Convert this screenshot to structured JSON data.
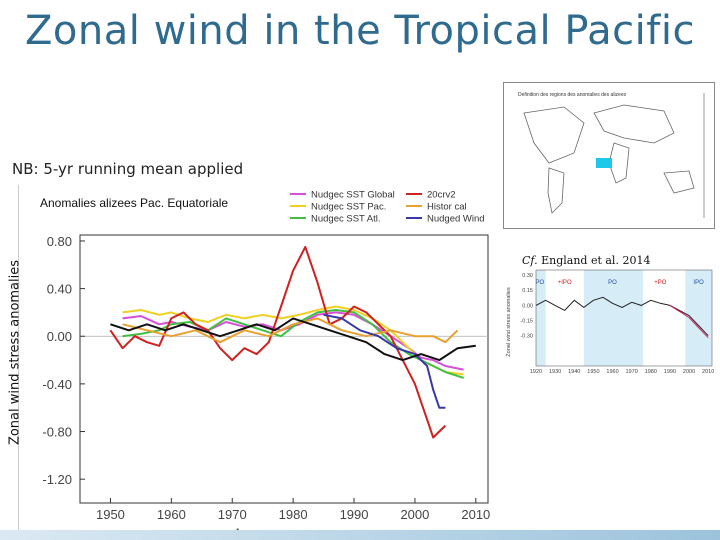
{
  "slide": {
    "title": "Zonal wind in the Tropical Pacific",
    "note": "NB: 5-yr running mean applied",
    "outer_ylabel": "Zonal wind stress anomalies",
    "cf_prefix": "Cf.",
    "cf_text": "England et al. 2014",
    "map_title": "Definition des regions des anomalies des alizees"
  },
  "chart_data": [
    {
      "type": "line",
      "title": "Anomalies alizees Pac. Equatoriale",
      "xlabel": "Annees",
      "ylabel": "",
      "xlim": [
        1945,
        2012
      ],
      "ylim": [
        -1.4,
        0.85
      ],
      "xticks": [
        1950,
        1960,
        1970,
        1980,
        1990,
        2000,
        2010
      ],
      "yticks": [
        0.8,
        0.4,
        0.0,
        -0.4,
        -0.8,
        -1.2
      ],
      "ytick_labels": [
        "0.80",
        "0.40",
        "0.00",
        "-0.40",
        "-0.80",
        "-1.20"
      ],
      "legend_placement": "top",
      "grid": false,
      "series": [
        {
          "name": "Nudgec SST Global",
          "color": "#d64fd6",
          "x": [
            1952,
            1955,
            1958,
            1960,
            1963,
            1966,
            1969,
            1972,
            1975,
            1978,
            1981,
            1984,
            1987,
            1990,
            1993,
            1996,
            1999,
            2001,
            2003,
            2005,
            2008
          ],
          "y": [
            0.15,
            0.17,
            0.1,
            0.12,
            0.08,
            0.05,
            0.12,
            0.08,
            0.1,
            0.05,
            0.1,
            0.18,
            0.2,
            0.18,
            0.1,
            0.0,
            -0.1,
            -0.18,
            -0.2,
            -0.25,
            -0.28
          ]
        },
        {
          "name": "Nudgec SST Pac.",
          "color": "#f0d020",
          "x": [
            1952,
            1955,
            1958,
            1960,
            1963,
            1966,
            1969,
            1972,
            1975,
            1978,
            1981,
            1984,
            1987,
            1990,
            1993,
            1996,
            1999,
            2001,
            2003,
            2005,
            2008
          ],
          "y": [
            0.2,
            0.22,
            0.18,
            0.2,
            0.15,
            0.12,
            0.18,
            0.15,
            0.18,
            0.15,
            0.18,
            0.22,
            0.25,
            0.22,
            0.15,
            0.05,
            -0.1,
            -0.2,
            -0.25,
            -0.3,
            -0.32
          ]
        },
        {
          "name": "Nudgec SST Atl.",
          "color": "#40c040",
          "x": [
            1952,
            1955,
            1958,
            1960,
            1963,
            1966,
            1969,
            1972,
            1975,
            1978,
            1981,
            1984,
            1987,
            1990,
            1993,
            1996,
            1999,
            2001,
            2003,
            2005,
            2008
          ],
          "y": [
            0.0,
            0.02,
            0.05,
            0.1,
            0.12,
            0.05,
            0.15,
            0.1,
            0.05,
            0.0,
            0.12,
            0.2,
            0.22,
            0.2,
            0.1,
            -0.05,
            -0.15,
            -0.2,
            -0.25,
            -0.3,
            -0.35
          ]
        },
        {
          "name": "20crv2",
          "color": "#d02020",
          "x": [
            1950,
            1952,
            1954,
            1956,
            1958,
            1960,
            1962,
            1964,
            1966,
            1968,
            1970,
            1972,
            1974,
            1976,
            1978,
            1980,
            1982,
            1984,
            1986,
            1988,
            1990,
            1992,
            1994,
            1996,
            1998,
            2000,
            2002,
            2003,
            2004,
            2005
          ],
          "y": [
            0.05,
            -0.1,
            0.0,
            -0.05,
            -0.08,
            0.15,
            0.2,
            0.1,
            0.05,
            -0.1,
            -0.2,
            -0.1,
            -0.15,
            -0.05,
            0.25,
            0.55,
            0.75,
            0.45,
            0.1,
            0.15,
            0.25,
            0.2,
            0.1,
            0.0,
            -0.2,
            -0.4,
            -0.7,
            -0.85,
            -0.8,
            -0.75
          ]
        },
        {
          "name": "Histor cal",
          "color": "#e8a030",
          "x": [
            1952,
            1956,
            1960,
            1964,
            1968,
            1972,
            1976,
            1980,
            1984,
            1988,
            1992,
            1996,
            2000,
            2003,
            2005,
            2007
          ],
          "y": [
            0.1,
            0.05,
            0.0,
            0.05,
            -0.05,
            0.05,
            0.0,
            0.1,
            0.15,
            0.05,
            0.0,
            0.05,
            0.0,
            0.0,
            -0.05,
            0.05
          ]
        },
        {
          "name": "Nudged Wind",
          "color": "#3838a8",
          "x": [
            1985,
            1988,
            1991,
            1994,
            1997,
            2000,
            2002,
            2003,
            2004,
            2005
          ],
          "y": [
            0.18,
            0.15,
            0.05,
            0.0,
            -0.1,
            -0.15,
            -0.25,
            -0.45,
            -0.6,
            -0.6
          ]
        },
        {
          "name": "",
          "color": "#111111",
          "x": [
            1950,
            1953,
            1956,
            1959,
            1962,
            1965,
            1968,
            1971,
            1974,
            1977,
            1980,
            1983,
            1986,
            1989,
            1992,
            1995,
            1998,
            2001,
            2004,
            2007,
            2010
          ],
          "y": [
            0.1,
            0.05,
            0.1,
            0.05,
            0.1,
            0.05,
            0.0,
            0.05,
            0.1,
            0.05,
            0.15,
            0.1,
            0.05,
            0.0,
            -0.05,
            -0.15,
            -0.2,
            -0.15,
            -0.2,
            -0.1,
            -0.08
          ]
        }
      ]
    },
    {
      "type": "line",
      "title": "",
      "ylabel": "Zonal wind stress anomalies",
      "xlim": [
        1920,
        2012
      ],
      "ylim": [
        -0.6,
        0.35
      ],
      "xticks": [
        1920,
        1930,
        1940,
        1950,
        1960,
        1970,
        1980,
        1990,
        2000,
        2010
      ],
      "yticks": [
        0.3,
        0.15,
        0.0,
        -0.15,
        -0.3
      ],
      "ytick_labels": [
        "0.30",
        "0.15",
        "0.00",
        "-0.15",
        "-0.30"
      ],
      "band_labels": [
        "PO",
        "+IPO",
        "PO",
        "+PO",
        "IPO"
      ],
      "series": [
        {
          "name": "",
          "color": "#222222",
          "x": [
            1920,
            1925,
            1930,
            1935,
            1940,
            1945,
            1950,
            1955,
            1960,
            1965,
            1970,
            1975,
            1980,
            1985,
            1990,
            1995,
            2000,
            2005,
            2010
          ],
          "y": [
            0.0,
            0.05,
            0.0,
            -0.05,
            0.05,
            -0.02,
            0.05,
            0.08,
            0.02,
            -0.02,
            0.03,
            0.0,
            0.05,
            0.02,
            0.0,
            -0.05,
            -0.1,
            -0.2,
            -0.3
          ]
        },
        {
          "name": "",
          "color": "#d02060",
          "x": [
            1990,
            1995,
            2000,
            2005,
            2010
          ],
          "y": [
            0.0,
            -0.06,
            -0.12,
            -0.22,
            -0.32
          ]
        }
      ]
    }
  ]
}
